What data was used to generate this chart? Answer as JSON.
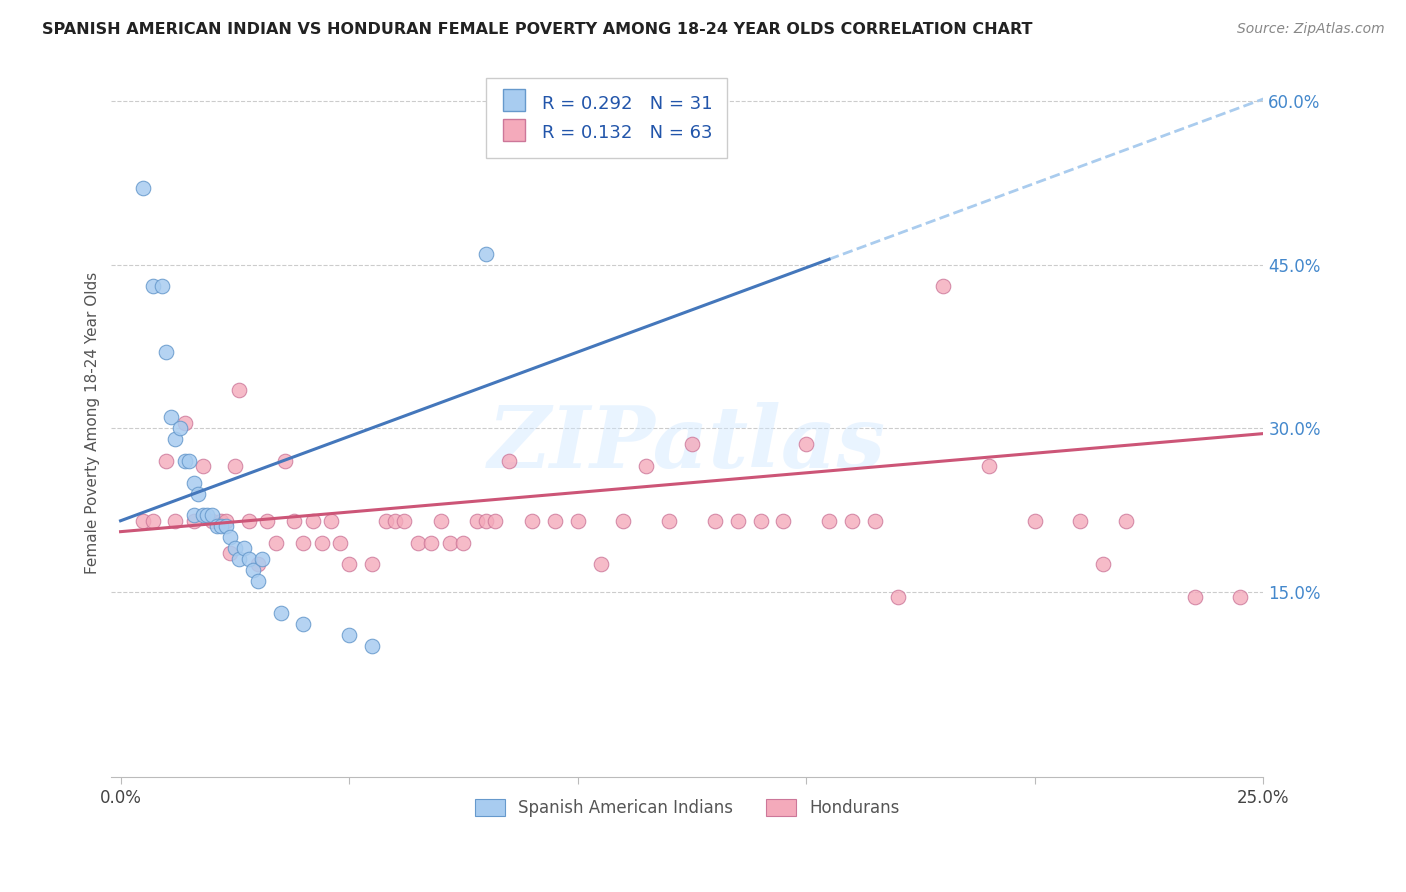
{
  "title": "SPANISH AMERICAN INDIAN VS HONDURAN FEMALE POVERTY AMONG 18-24 YEAR OLDS CORRELATION CHART",
  "source": "Source: ZipAtlas.com",
  "ylabel": "Female Poverty Among 18-24 Year Olds",
  "xlim": [
    0.0,
    0.25
  ],
  "ylim": [
    0.0,
    0.63
  ],
  "legend_label1": "Spanish American Indians",
  "legend_label2": "Hondurans",
  "R1": 0.292,
  "N1": 31,
  "R2": 0.132,
  "N2": 63,
  "color1": "#A8CCF0",
  "color2": "#F4AABB",
  "edge_color1": "#6699CC",
  "edge_color2": "#CC7799",
  "line_color1": "#4477BB",
  "line_color2": "#CC5577",
  "dashed_line_color": "#AACCEE",
  "watermark": "ZIPatlas",
  "blue_scatter_x": [
    0.005,
    0.007,
    0.009,
    0.01,
    0.011,
    0.012,
    0.013,
    0.014,
    0.015,
    0.016,
    0.016,
    0.017,
    0.018,
    0.019,
    0.02,
    0.021,
    0.022,
    0.023,
    0.024,
    0.025,
    0.026,
    0.027,
    0.028,
    0.029,
    0.03,
    0.031,
    0.035,
    0.04,
    0.05,
    0.055,
    0.08
  ],
  "blue_scatter_y": [
    0.52,
    0.43,
    0.43,
    0.37,
    0.31,
    0.29,
    0.3,
    0.27,
    0.27,
    0.25,
    0.22,
    0.24,
    0.22,
    0.22,
    0.22,
    0.21,
    0.21,
    0.21,
    0.2,
    0.19,
    0.18,
    0.19,
    0.18,
    0.17,
    0.16,
    0.18,
    0.13,
    0.12,
    0.11,
    0.1,
    0.46
  ],
  "pink_scatter_x": [
    0.005,
    0.007,
    0.01,
    0.012,
    0.014,
    0.016,
    0.018,
    0.02,
    0.022,
    0.023,
    0.024,
    0.025,
    0.026,
    0.028,
    0.03,
    0.032,
    0.034,
    0.036,
    0.038,
    0.04,
    0.042,
    0.044,
    0.046,
    0.048,
    0.05,
    0.055,
    0.058,
    0.06,
    0.062,
    0.065,
    0.068,
    0.07,
    0.072,
    0.075,
    0.078,
    0.08,
    0.082,
    0.085,
    0.09,
    0.095,
    0.1,
    0.105,
    0.11,
    0.115,
    0.12,
    0.125,
    0.13,
    0.135,
    0.14,
    0.145,
    0.15,
    0.155,
    0.16,
    0.165,
    0.17,
    0.18,
    0.19,
    0.2,
    0.21,
    0.215,
    0.22,
    0.235,
    0.245
  ],
  "pink_scatter_y": [
    0.215,
    0.215,
    0.27,
    0.215,
    0.305,
    0.215,
    0.265,
    0.215,
    0.215,
    0.215,
    0.185,
    0.265,
    0.335,
    0.215,
    0.175,
    0.215,
    0.195,
    0.27,
    0.215,
    0.195,
    0.215,
    0.195,
    0.215,
    0.195,
    0.175,
    0.175,
    0.215,
    0.215,
    0.215,
    0.195,
    0.195,
    0.215,
    0.195,
    0.195,
    0.215,
    0.215,
    0.215,
    0.27,
    0.215,
    0.215,
    0.215,
    0.175,
    0.215,
    0.265,
    0.215,
    0.285,
    0.215,
    0.215,
    0.215,
    0.215,
    0.285,
    0.215,
    0.215,
    0.215,
    0.145,
    0.43,
    0.265,
    0.215,
    0.215,
    0.175,
    0.215,
    0.145,
    0.145
  ],
  "blue_line_x0": 0.0,
  "blue_line_y0": 0.215,
  "blue_line_x1": 0.155,
  "blue_line_y1": 0.455,
  "pink_line_x0": 0.0,
  "pink_line_y0": 0.205,
  "pink_line_x1": 0.25,
  "pink_line_y1": 0.295
}
